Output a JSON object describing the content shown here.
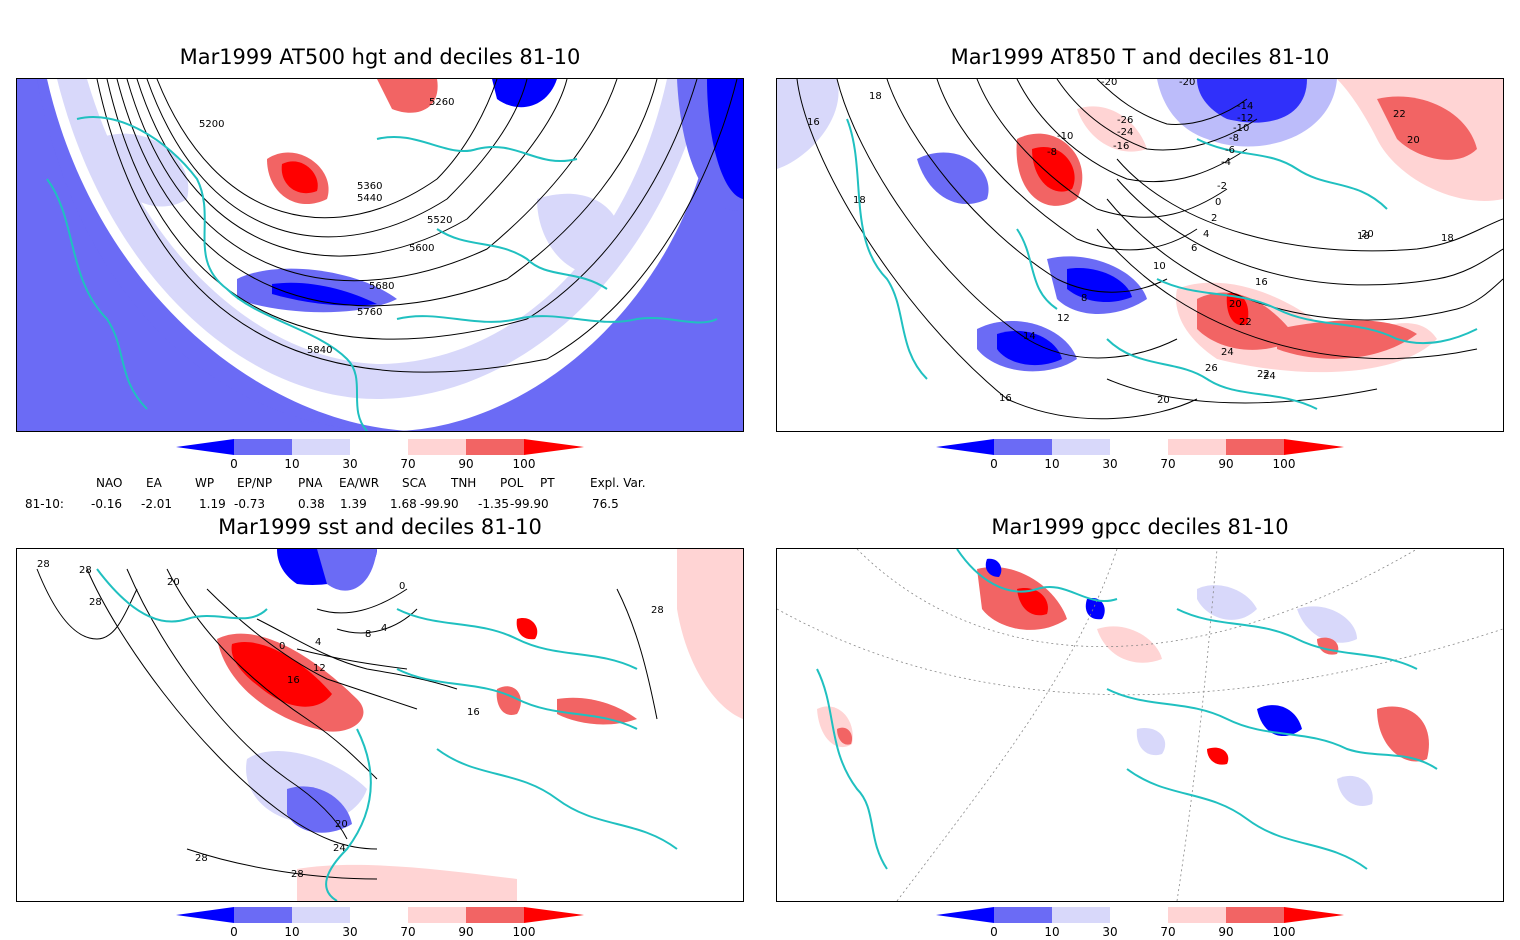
{
  "panels": [
    {
      "id": "p1",
      "title": "Mar1999 AT500 hgt and deciles 81-10",
      "contour_labels": [
        "5200",
        "5260",
        "5360",
        "5440",
        "5520",
        "5600",
        "5680",
        "5760",
        "5840"
      ]
    },
    {
      "id": "p2",
      "title": "Mar1999 AT850 T and deciles 81-10",
      "contour_labels": [
        "18",
        "16",
        "18",
        "-10",
        "-8",
        "-26",
        "-24",
        "-16",
        "-20",
        "-20",
        "-14",
        "-12",
        "-10",
        "-8",
        "-6",
        "-4",
        "-2",
        "0",
        "2",
        "4",
        "6",
        "8",
        "10",
        "12",
        "14",
        "16",
        "18",
        "20",
        "22",
        "24",
        "26",
        "22",
        "24",
        "22",
        "20",
        "18",
        "20",
        "16",
        "20"
      ]
    },
    {
      "id": "p3",
      "title": "Mar1999 sst and deciles 81-10",
      "contour_labels": [
        "28",
        "28",
        "20",
        "28",
        "0",
        "4",
        "8",
        "4",
        "0",
        "12",
        "16",
        "16",
        "20",
        "24",
        "28",
        "28",
        "28"
      ]
    },
    {
      "id": "p4",
      "title": "Mar1999 gpcc deciles 81-10"
    }
  ],
  "colorbar": {
    "tick_labels": [
      "0",
      "10",
      "30",
      "70",
      "90",
      "100"
    ],
    "colors": [
      "#0000ff",
      "#6b6bf5",
      "#d8d8fa",
      "#ffffff",
      "#ffd4d4",
      "#f26464",
      "#ff0000"
    ]
  },
  "indices": {
    "headers": [
      "NAO",
      "EA",
      "WP",
      "EP/NP",
      "PNA",
      "EA/WR",
      "SCA",
      "TNH",
      "POL",
      "PT",
      "Expl. Var."
    ],
    "row_label": "81-10:",
    "values": [
      "-0.16",
      "-2.01",
      "1.19",
      "-0.73",
      "0.38",
      "1.39",
      "1.68",
      "-99.90",
      "-1.35",
      "-99.90",
      "76.5"
    ]
  },
  "colors": {
    "coast": "#20c0c0",
    "contour": "#000000",
    "grid": "#888888"
  }
}
